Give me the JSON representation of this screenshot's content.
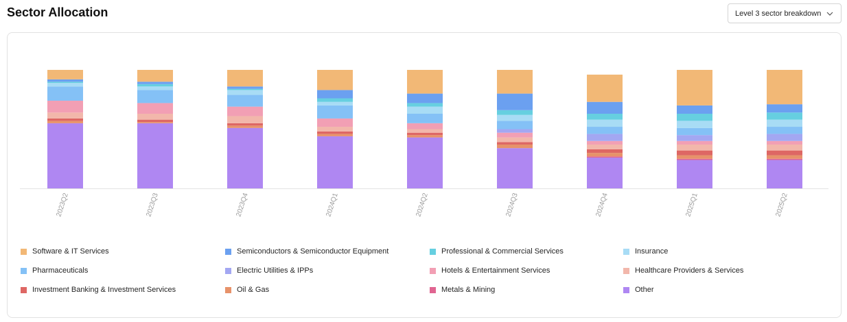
{
  "header": {
    "title": "Sector Allocation",
    "dropdown_label": "Level 3 sector breakdown"
  },
  "chart_data": {
    "type": "bar",
    "stacked": true,
    "categories": [
      "2023Q2",
      "2023Q3",
      "2023Q4",
      "2024Q1",
      "2024Q2",
      "2024Q3",
      "2024Q4",
      "2025Q1",
      "2025Q2"
    ],
    "ylim": [
      0,
      100
    ],
    "grid": false,
    "legend_position": "bottom",
    "series": [
      {
        "name": "Other",
        "color": "#af87f2",
        "values": [
          55,
          55,
          51,
          44,
          43,
          34,
          26,
          24,
          24
        ]
      },
      {
        "name": "Metals & Mining",
        "color": "#e06591",
        "values": [
          0,
          0,
          0,
          0,
          0,
          0,
          1,
          1,
          1
        ]
      },
      {
        "name": "Oil & Gas",
        "color": "#e7926a",
        "values": [
          2,
          1,
          2,
          2,
          2,
          3,
          3,
          3,
          3
        ]
      },
      {
        "name": "Investment Banking & Investment Services",
        "color": "#de6764",
        "values": [
          2,
          2,
          2,
          2,
          2,
          2,
          3,
          4,
          4
        ]
      },
      {
        "name": "Healthcare Providers & Services",
        "color": "#f2b7ab",
        "values": [
          5,
          5,
          6,
          4,
          3,
          4,
          4,
          5,
          5
        ]
      },
      {
        "name": "Hotels & Entertainment Services",
        "color": "#f29fb4",
        "values": [
          10,
          9,
          8,
          7,
          5,
          4,
          3,
          3,
          3
        ]
      },
      {
        "name": "Electric Utilities & IPPs",
        "color": "#a3a7f2",
        "values": [
          0,
          0,
          0,
          0,
          0,
          3,
          6,
          5,
          6
        ]
      },
      {
        "name": "Pharmaceuticals",
        "color": "#84c1f6",
        "values": [
          12,
          11,
          10,
          11,
          8,
          7,
          6,
          6,
          6
        ]
      },
      {
        "name": "Insurance",
        "color": "#a8dcf5",
        "values": [
          3,
          3,
          4,
          3,
          6,
          5,
          6,
          6,
          6
        ]
      },
      {
        "name": "Professional & Commercial Services",
        "color": "#66cfe0",
        "values": [
          1,
          2,
          1,
          3,
          3,
          4,
          5,
          6,
          6
        ]
      },
      {
        "name": "Semiconductors & Semiconductor Equipment",
        "color": "#6ba0f0",
        "values": [
          2,
          2,
          2,
          7,
          8,
          14,
          10,
          7,
          7
        ]
      },
      {
        "name": "Software & IT Services",
        "color": "#f2b876",
        "values": [
          8,
          10,
          14,
          17,
          20,
          20,
          23,
          30,
          29
        ]
      }
    ]
  },
  "legend": [
    {
      "name": "Software & IT Services",
      "color": "#f2b876"
    },
    {
      "name": "Semiconductors & Semiconductor Equipment",
      "color": "#6ba0f0"
    },
    {
      "name": "Professional & Commercial Services",
      "color": "#66cfe0"
    },
    {
      "name": "Insurance",
      "color": "#a8dcf5"
    },
    {
      "name": "Pharmaceuticals",
      "color": "#84c1f6"
    },
    {
      "name": "Electric Utilities & IPPs",
      "color": "#a3a7f2"
    },
    {
      "name": "Hotels & Entertainment Services",
      "color": "#f29fb4"
    },
    {
      "name": "Healthcare Providers & Services",
      "color": "#f2b7ab"
    },
    {
      "name": "Investment Banking & Investment Services",
      "color": "#de6764"
    },
    {
      "name": "Oil & Gas",
      "color": "#e7926a"
    },
    {
      "name": "Metals & Mining",
      "color": "#e06591"
    },
    {
      "name": "Other",
      "color": "#af87f2"
    }
  ],
  "icons": {
    "dropdown": "chevron-down-icon"
  }
}
